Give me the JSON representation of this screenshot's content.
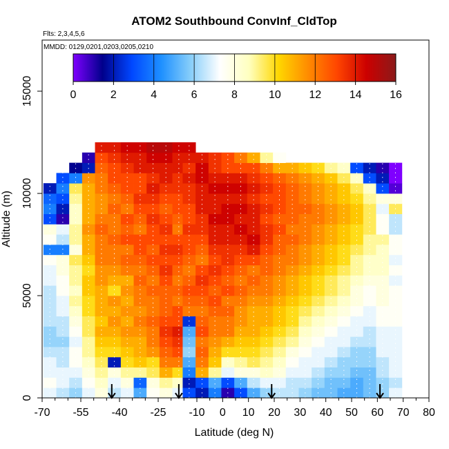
{
  "chart_data": {
    "type": "heatmap",
    "title": "ATOM2 Southbound ConvInf_CldTop",
    "annotations": [
      "Flts: 2,3,4,5,6",
      "MMDD: 0129,0201,0203,0205,0210"
    ],
    "xlabel": "Latitude (deg N)",
    "ylabel": "Altitude (m)",
    "xlim": [
      -70,
      80
    ],
    "ylim": [
      0,
      17500
    ],
    "x_ticks": [
      -70,
      -55,
      -40,
      -25,
      -10,
      0,
      10,
      20,
      30,
      40,
      50,
      60,
      70,
      80
    ],
    "x_tick_labels": [
      "-70",
      "-55",
      "-40",
      "-25",
      "-10",
      "0",
      "10",
      "20",
      "30",
      "40",
      "50",
      "60",
      "70",
      "80"
    ],
    "x_minor_ticks": [
      -65,
      -60,
      -50,
      -45,
      -35,
      -30,
      -20,
      -15,
      -5,
      5,
      15,
      25,
      35,
      45,
      55,
      65,
      75
    ],
    "y_ticks": [
      0,
      5000,
      10000,
      15000
    ],
    "y_tick_labels": [
      "0",
      "5000",
      "10000",
      "15000"
    ],
    "colorbar": {
      "range": [
        0,
        16
      ],
      "ticks": [
        0,
        2,
        4,
        6,
        8,
        10,
        12,
        14,
        16
      ],
      "tick_labels": [
        "0",
        "2",
        "4",
        "6",
        "8",
        "10",
        "12",
        "14",
        "16"
      ],
      "colors": [
        "#7f00ff",
        "#00008b",
        "#0047ff",
        "#1e90ff",
        "#87cefa",
        "#ffffff",
        "#ffffbf",
        "#ffd700",
        "#ff8c00",
        "#ff4500",
        "#cc0000",
        "#8b1a1a"
      ]
    },
    "arrow_markers_x": [
      -43,
      -17,
      19,
      61
    ],
    "altitude_bins_m": [
      250,
      750,
      1250,
      1750,
      2250,
      2750,
      3250,
      3750,
      4250,
      4750,
      5250,
      5750,
      6250,
      6750,
      7250,
      7750,
      8250,
      8750,
      9250,
      9750,
      10250,
      10750,
      11250,
      11750,
      12250
    ],
    "profiles": [
      {
        "lat": -67,
        "values": [
          7,
          7.5,
          7,
          7,
          6.5,
          6,
          6,
          6.5,
          6.5,
          6.5,
          6.5,
          7,
          7,
          7.5,
          4,
          7.5,
          8,
          3,
          4,
          3.5,
          2,
          null,
          null,
          null,
          null
        ]
      },
      {
        "lat": -62,
        "values": [
          6.5,
          7,
          7,
          6.5,
          6.5,
          6,
          6.5,
          6.5,
          7,
          7,
          7.5,
          7.5,
          8,
          8,
          4,
          6.5,
          7,
          1,
          2,
          3,
          4,
          3,
          null,
          null,
          null
        ]
      },
      {
        "lat": -57,
        "values": [
          6,
          6.5,
          7,
          7.5,
          7.5,
          7,
          7.5,
          8,
          8.5,
          9,
          8.5,
          9,
          9,
          9.5,
          8,
          9,
          9,
          8.5,
          8.5,
          9,
          9.5,
          4,
          1.5,
          null,
          null
        ]
      },
      {
        "lat": -52,
        "values": [
          7,
          7.5,
          8,
          8.5,
          9,
          9,
          9.5,
          9.5,
          10,
          10,
          10.5,
          10.5,
          10,
          10.5,
          11,
          11,
          11.5,
          11,
          11,
          11,
          11,
          11.5,
          2,
          1,
          null
        ]
      },
      {
        "lat": -47,
        "values": [
          8,
          8.5,
          9,
          9.5,
          10,
          10.5,
          11,
          10.5,
          11,
          11,
          11,
          11.5,
          11.5,
          12,
          12,
          12,
          12.5,
          12,
          11.5,
          11.5,
          12,
          12,
          12.5,
          13,
          14
        ]
      },
      {
        "lat": -42,
        "values": [
          6.5,
          7,
          8,
          2,
          10,
          10.5,
          11,
          11.5,
          11,
          11.5,
          10,
          11,
          11.5,
          12,
          12,
          12.5,
          12,
          12,
          12.5,
          12,
          12.5,
          13,
          13,
          13.5,
          14
        ]
      },
      {
        "lat": -37,
        "values": [
          7,
          8,
          9,
          10,
          10.5,
          11,
          11.5,
          11,
          11.5,
          11,
          11.5,
          11,
          12,
          12.5,
          12,
          13,
          12.5,
          13,
          12,
          12.5,
          13,
          13,
          13.5,
          14,
          14.5
        ]
      },
      {
        "lat": -32,
        "values": [
          5,
          3.5,
          9,
          10.5,
          11,
          11,
          11.5,
          12,
          11.5,
          12,
          12,
          12.5,
          12,
          12.5,
          13,
          13,
          12,
          12.5,
          13,
          13.5,
          13,
          13,
          14,
          14,
          14.5
        ]
      },
      {
        "lat": -27,
        "values": [
          7.5,
          8,
          9.5,
          10,
          11.5,
          12,
          12,
          12.5,
          12,
          12,
          12.5,
          12,
          12.5,
          13,
          12.5,
          13,
          13,
          13.5,
          13,
          13.5,
          14,
          13.5,
          14,
          14.5,
          15
        ]
      },
      {
        "lat": -22,
        "values": [
          8,
          9,
          11,
          12,
          12.5,
          13,
          13.5,
          13,
          12.5,
          12.5,
          12.5,
          13,
          13.5,
          13,
          13.5,
          13,
          13.5,
          13,
          12.5,
          13,
          13.5,
          14,
          14,
          14.5,
          15
        ]
      },
      {
        "lat": -17,
        "values": [
          7,
          8.5,
          10,
          12,
          13,
          13.5,
          14,
          13,
          13,
          12,
          12.5,
          12,
          12.5,
          13,
          13.5,
          13,
          12,
          12.5,
          13,
          13,
          13.5,
          13.5,
          14,
          14,
          14.5
        ]
      },
      {
        "lat": -13,
        "values": [
          3,
          2,
          4,
          5,
          6,
          5.5,
          5,
          2.5,
          12,
          12.5,
          13,
          12.5,
          12,
          12.5,
          13,
          13,
          13.5,
          13,
          13,
          13.5,
          13.5,
          14,
          13.5,
          14,
          14.5
        ]
      },
      {
        "lat": -8,
        "values": [
          2,
          3,
          11,
          12,
          12.5,
          12,
          13,
          12.5,
          12,
          12.5,
          13,
          13.5,
          13,
          12,
          12.5,
          13,
          13.5,
          13.5,
          14,
          14,
          14,
          14.5,
          14.5,
          14,
          null
        ]
      },
      {
        "lat": -3,
        "values": [
          4,
          5,
          9,
          10.5,
          11,
          11.5,
          12,
          12,
          12.5,
          13,
          12.5,
          13,
          13.5,
          13,
          13.5,
          14,
          14,
          14.5,
          14,
          14,
          14.5,
          14,
          13.5,
          13.5,
          null
        ]
      },
      {
        "lat": 2,
        "values": [
          1,
          3,
          7,
          8.5,
          10,
          11,
          12,
          12,
          12.5,
          12,
          13,
          12.5,
          13,
          13.5,
          13.5,
          14,
          14,
          14.5,
          14.5,
          14,
          14.5,
          14,
          13,
          13,
          null
        ]
      },
      {
        "lat": 7,
        "values": [
          3,
          5,
          8,
          9,
          10,
          10.5,
          11,
          11.5,
          11.5,
          12,
          12.5,
          12,
          12.5,
          13,
          13.5,
          14,
          14.5,
          14,
          14.5,
          14,
          14.5,
          14,
          13,
          12,
          null
        ]
      },
      {
        "lat": 12,
        "values": [
          5,
          6.5,
          8,
          9.5,
          10,
          10.5,
          11,
          11,
          11,
          11.5,
          12,
          12.5,
          12,
          13,
          14,
          14.5,
          14,
          14,
          14,
          13.5,
          14,
          13.5,
          13,
          11,
          null
        ]
      },
      {
        "lat": 17,
        "values": [
          6,
          7,
          8.5,
          9,
          9.5,
          10,
          10.5,
          11,
          11,
          11.5,
          12,
          12,
          12.5,
          12.5,
          13,
          13.5,
          13.5,
          13,
          13.5,
          13,
          13.5,
          13,
          12,
          9,
          null
        ]
      },
      {
        "lat": 22,
        "values": [
          6.5,
          7,
          8,
          8.5,
          9,
          9.5,
          10,
          10.5,
          10.5,
          11,
          11.5,
          11.5,
          12,
          12,
          12.5,
          12.5,
          13,
          12.5,
          13,
          13,
          13,
          12.5,
          11,
          7.5,
          null
        ]
      },
      {
        "lat": 27,
        "values": [
          6.5,
          6.5,
          7,
          7.5,
          8,
          9,
          9.5,
          10,
          10,
          10.5,
          11,
          11,
          11.5,
          12,
          12,
          12.5,
          12,
          12.5,
          12.5,
          12.5,
          12.5,
          12,
          11,
          null,
          null
        ]
      },
      {
        "lat": 32,
        "values": [
          6,
          6.5,
          7,
          7,
          7.5,
          8,
          8.5,
          9,
          9.5,
          10,
          10.5,
          10.5,
          11,
          11.5,
          11.5,
          12,
          12,
          12,
          12.5,
          12,
          12,
          11.5,
          10.5,
          null,
          null
        ]
      },
      {
        "lat": 37,
        "values": [
          5.5,
          6,
          6.5,
          7,
          7,
          7.5,
          8,
          8.5,
          9,
          9.5,
          10,
          10,
          10.5,
          11,
          11,
          11.5,
          11.5,
          12,
          12,
          11.5,
          11.5,
          11,
          10,
          null,
          null
        ]
      },
      {
        "lat": 42,
        "values": [
          5.5,
          5.5,
          6,
          6.5,
          7,
          7,
          7.5,
          8,
          8.5,
          9,
          9.5,
          9.5,
          10,
          10.5,
          10.5,
          11,
          11,
          11.5,
          11.5,
          11,
          11,
          10.5,
          9,
          null,
          null
        ]
      },
      {
        "lat": 47,
        "values": [
          5,
          5.5,
          6,
          6,
          6.5,
          7,
          7,
          7.5,
          8,
          8.5,
          9,
          9,
          9.5,
          10,
          10,
          10.5,
          10.5,
          11,
          11,
          10.5,
          10.5,
          9.5,
          8.5,
          null,
          null
        ]
      },
      {
        "lat": 52,
        "values": [
          5,
          5,
          5.5,
          6,
          6,
          6.5,
          7,
          7,
          7.5,
          8,
          8,
          8.5,
          9,
          9,
          9.5,
          10,
          10,
          10.5,
          10.5,
          10,
          9.5,
          8.5,
          3,
          null,
          null
        ]
      },
      {
        "lat": 57,
        "values": [
          5.5,
          5.5,
          5.5,
          6,
          6,
          6.5,
          6.5,
          7,
          7,
          7.5,
          7.5,
          8,
          8.5,
          8.5,
          9,
          9,
          9.5,
          9.5,
          9.5,
          9,
          8.5,
          3,
          2,
          null,
          null
        ]
      },
      {
        "lat": 62,
        "values": [
          6,
          6,
          6.5,
          6.5,
          7,
          7,
          7,
          7.5,
          7.5,
          8,
          8,
          8,
          8.5,
          8.5,
          8.5,
          9,
          7.5,
          7.5,
          7,
          8,
          3,
          2,
          1,
          null,
          null
        ]
      },
      {
        "lat": 67,
        "values": [
          7,
          6.5,
          7,
          7,
          7,
          7,
          7,
          7.5,
          7.5,
          7.5,
          7.5,
          7,
          7.5,
          7,
          7.5,
          7.5,
          6.5,
          6.5,
          9.5,
          8,
          0.5,
          0,
          0,
          null,
          null
        ]
      }
    ]
  }
}
